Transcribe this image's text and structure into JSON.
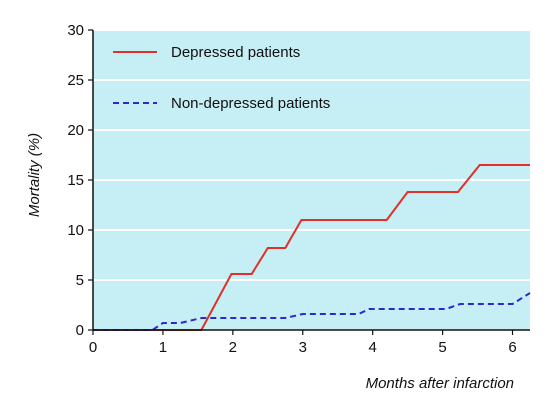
{
  "chart_data": {
    "type": "line",
    "title": "",
    "xlabel": "Months after infarction",
    "ylabel": "Mortality (%)",
    "xlim": [
      0,
      6.25
    ],
    "ylim": [
      0,
      30
    ],
    "xticks": [
      0,
      1,
      2,
      3,
      4,
      5,
      6
    ],
    "yticks": [
      0,
      5,
      10,
      15,
      20,
      25,
      30
    ],
    "grid": "horizontal",
    "legend": "top-left",
    "colors": {
      "plot_background": "#c6eef5",
      "grid": "#ffffff",
      "depressed": "#e03028",
      "non_depressed": "#2a2ad0"
    },
    "series": [
      {
        "name": "Depressed patients",
        "style": "solid",
        "points": [
          [
            0,
            0
          ],
          [
            1.55,
            0
          ],
          [
            1.98,
            5.6
          ],
          [
            2.27,
            5.6
          ],
          [
            2.5,
            8.2
          ],
          [
            2.75,
            8.2
          ],
          [
            2.98,
            11.0
          ],
          [
            4.2,
            11.0
          ],
          [
            4.5,
            13.8
          ],
          [
            5.22,
            13.8
          ],
          [
            5.53,
            16.5
          ],
          [
            6.25,
            16.5
          ]
        ]
      },
      {
        "name": "Non-depressed patients",
        "style": "dashed",
        "points": [
          [
            0,
            0
          ],
          [
            0.85,
            0
          ],
          [
            1.0,
            0.7
          ],
          [
            1.25,
            0.7
          ],
          [
            1.55,
            1.2
          ],
          [
            2.75,
            1.2
          ],
          [
            3.0,
            1.6
          ],
          [
            3.8,
            1.6
          ],
          [
            3.95,
            2.1
          ],
          [
            5.05,
            2.1
          ],
          [
            5.25,
            2.6
          ],
          [
            6.0,
            2.6
          ],
          [
            6.25,
            3.7
          ]
        ]
      }
    ]
  }
}
